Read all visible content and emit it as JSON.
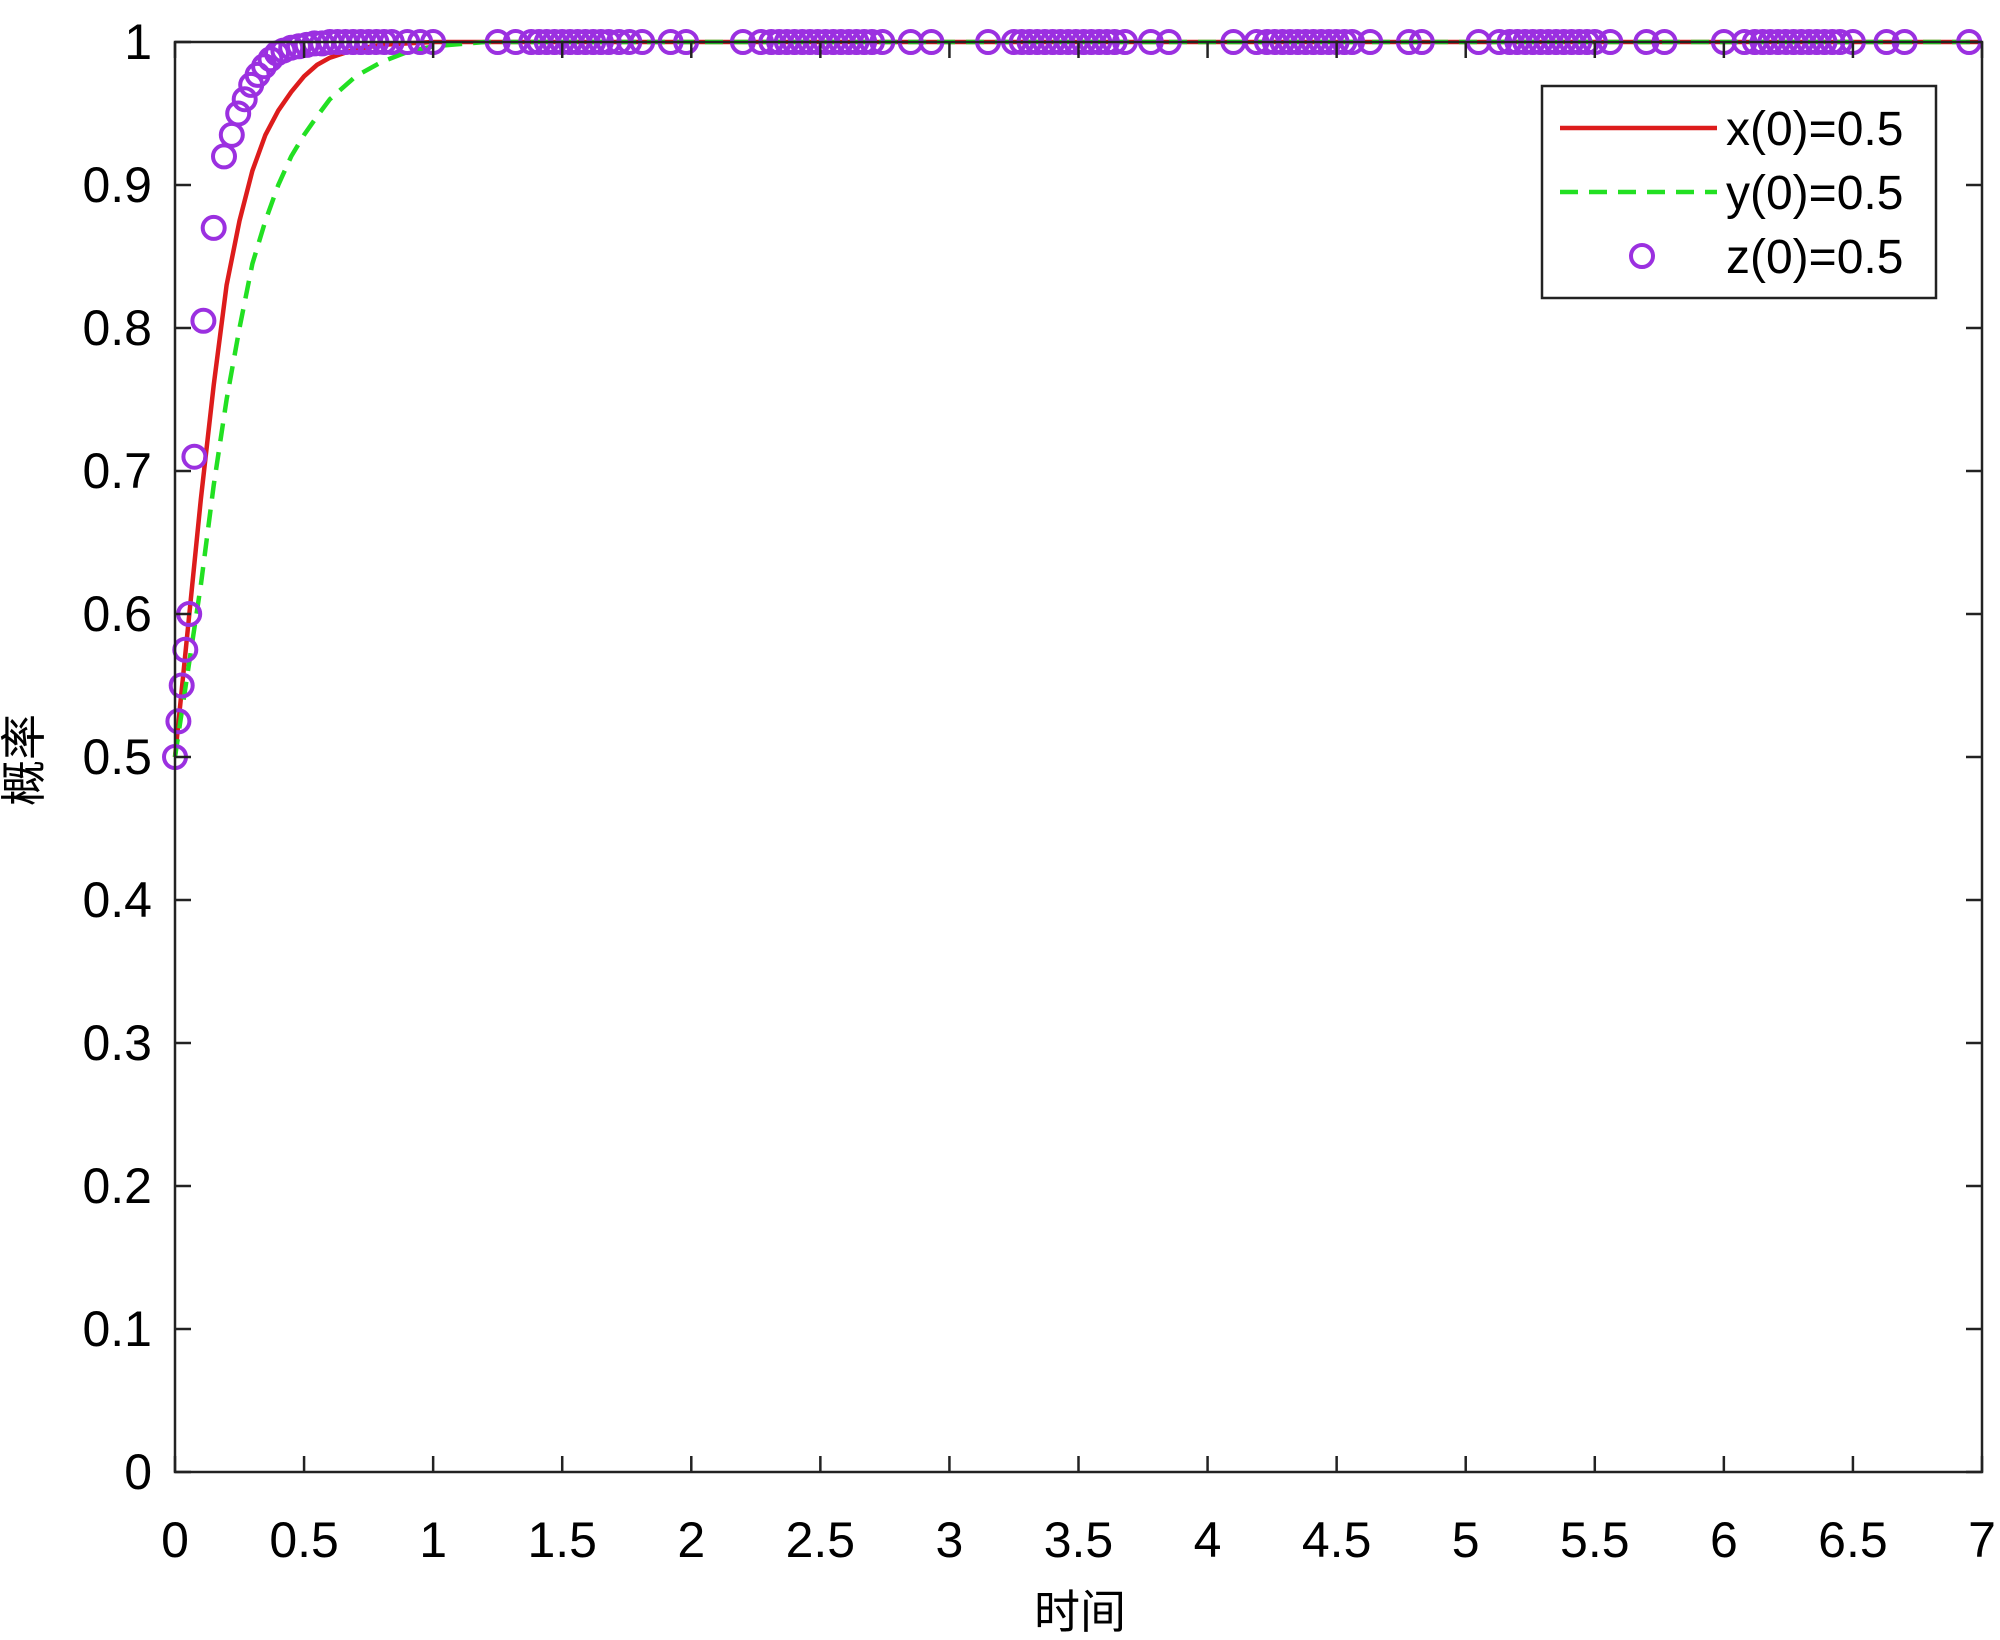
{
  "chart_data": {
    "type": "line",
    "title": "",
    "xlabel": "时间",
    "ylabel": "概率",
    "xlim": [
      0,
      7
    ],
    "ylim": [
      0,
      1
    ],
    "xticks": [
      "0",
      "0.5",
      "1",
      "1.5",
      "2",
      "2.5",
      "3",
      "3.5",
      "4",
      "4.5",
      "5",
      "5.5",
      "6",
      "6.5",
      "7"
    ],
    "yticks": [
      "0",
      "0.1",
      "0.2",
      "0.3",
      "0.4",
      "0.5",
      "0.6",
      "0.7",
      "0.8",
      "0.9",
      "1"
    ],
    "grid": false,
    "legend_position": "top-right",
    "series": [
      {
        "name": "x(0)=0.5",
        "style": "solid-line",
        "color": "#dd1c1c",
        "x": [
          0,
          0.05,
          0.1,
          0.15,
          0.2,
          0.25,
          0.3,
          0.35,
          0.4,
          0.45,
          0.5,
          0.55,
          0.6,
          0.7,
          0.8,
          0.9,
          1.0,
          7.0
        ],
        "y": [
          0.5,
          0.59,
          0.68,
          0.76,
          0.83,
          0.875,
          0.91,
          0.935,
          0.952,
          0.965,
          0.976,
          0.984,
          0.989,
          0.995,
          0.998,
          0.999,
          1.0,
          1.0
        ]
      },
      {
        "name": "y(0)=0.5",
        "style": "dashed-line",
        "color": "#22e022",
        "x": [
          0,
          0.05,
          0.1,
          0.15,
          0.2,
          0.25,
          0.3,
          0.35,
          0.4,
          0.45,
          0.5,
          0.55,
          0.6,
          0.7,
          0.8,
          0.9,
          1.0,
          1.2,
          7.0
        ],
        "y": [
          0.5,
          0.56,
          0.62,
          0.69,
          0.75,
          0.8,
          0.845,
          0.875,
          0.9,
          0.92,
          0.935,
          0.948,
          0.96,
          0.976,
          0.986,
          0.993,
          0.997,
          1.0,
          1.0
        ]
      },
      {
        "name": "z(0)=0.5",
        "style": "circle-markers",
        "color": "#9b30e0",
        "x": [
          0,
          0.013,
          0.026,
          0.04,
          0.055,
          0.075,
          0.11,
          0.15,
          0.19,
          0.22,
          0.245,
          0.27,
          0.295,
          0.32,
          0.345,
          0.37,
          0.395,
          0.42,
          0.45,
          0.48,
          0.51,
          0.54,
          0.57,
          0.6,
          0.63,
          0.66,
          0.69,
          0.72,
          0.75,
          0.78,
          0.81,
          0.84,
          0.9,
          0.95,
          1.0,
          1.25,
          1.32,
          1.38,
          1.41,
          1.44,
          1.47,
          1.5,
          1.53,
          1.56,
          1.59,
          1.62,
          1.65,
          1.68,
          1.72,
          1.76,
          1.81,
          1.92,
          1.98,
          2.2,
          2.27,
          2.31,
          2.34,
          2.37,
          2.4,
          2.43,
          2.46,
          2.49,
          2.52,
          2.55,
          2.58,
          2.61,
          2.64,
          2.67,
          2.7,
          2.74,
          2.85,
          2.93,
          3.15,
          3.25,
          3.28,
          3.31,
          3.34,
          3.37,
          3.4,
          3.43,
          3.46,
          3.49,
          3.52,
          3.55,
          3.58,
          3.61,
          3.64,
          3.68,
          3.78,
          3.85,
          4.1,
          4.19,
          4.23,
          4.26,
          4.29,
          4.32,
          4.35,
          4.38,
          4.41,
          4.44,
          4.47,
          4.5,
          4.53,
          4.56,
          4.63,
          4.78,
          4.83,
          5.05,
          5.13,
          5.17,
          5.2,
          5.23,
          5.26,
          5.29,
          5.32,
          5.35,
          5.38,
          5.41,
          5.44,
          5.47,
          5.5,
          5.56,
          5.7,
          5.77,
          6.0,
          6.08,
          6.12,
          6.15,
          6.18,
          6.21,
          6.24,
          6.27,
          6.3,
          6.33,
          6.36,
          6.39,
          6.42,
          6.45,
          6.5,
          6.63,
          6.7,
          6.95
        ],
        "y": [
          0.5,
          0.525,
          0.55,
          0.575,
          0.6,
          0.71,
          0.805,
          0.87,
          0.92,
          0.935,
          0.95,
          0.96,
          0.97,
          0.977,
          0.983,
          0.988,
          0.992,
          0.994,
          0.996,
          0.997,
          0.998,
          0.999,
          0.999,
          1.0,
          1.0,
          1.0,
          1.0,
          1.0,
          1.0,
          1.0,
          1.0,
          1.0,
          1.0,
          1.0,
          1.0,
          1.0,
          1.0,
          1.0,
          1.0,
          1.0,
          1.0,
          1.0,
          1.0,
          1.0,
          1.0,
          1.0,
          1.0,
          1.0,
          1.0,
          1.0,
          1.0,
          1.0,
          1.0,
          1.0,
          1.0,
          1.0,
          1.0,
          1.0,
          1.0,
          1.0,
          1.0,
          1.0,
          1.0,
          1.0,
          1.0,
          1.0,
          1.0,
          1.0,
          1.0,
          1.0,
          1.0,
          1.0,
          1.0,
          1.0,
          1.0,
          1.0,
          1.0,
          1.0,
          1.0,
          1.0,
          1.0,
          1.0,
          1.0,
          1.0,
          1.0,
          1.0,
          1.0,
          1.0,
          1.0,
          1.0,
          1.0,
          1.0,
          1.0,
          1.0,
          1.0,
          1.0,
          1.0,
          1.0,
          1.0,
          1.0,
          1.0,
          1.0,
          1.0,
          1.0,
          1.0,
          1.0,
          1.0,
          1.0,
          1.0,
          1.0,
          1.0,
          1.0,
          1.0,
          1.0,
          1.0,
          1.0,
          1.0,
          1.0,
          1.0,
          1.0,
          1.0,
          1.0,
          1.0,
          1.0,
          1.0,
          1.0,
          1.0,
          1.0,
          1.0,
          1.0,
          1.0,
          1.0,
          1.0,
          1.0,
          1.0,
          1.0,
          1.0,
          1.0,
          1.0,
          1.0,
          1.0,
          1.0
        ]
      }
    ]
  }
}
